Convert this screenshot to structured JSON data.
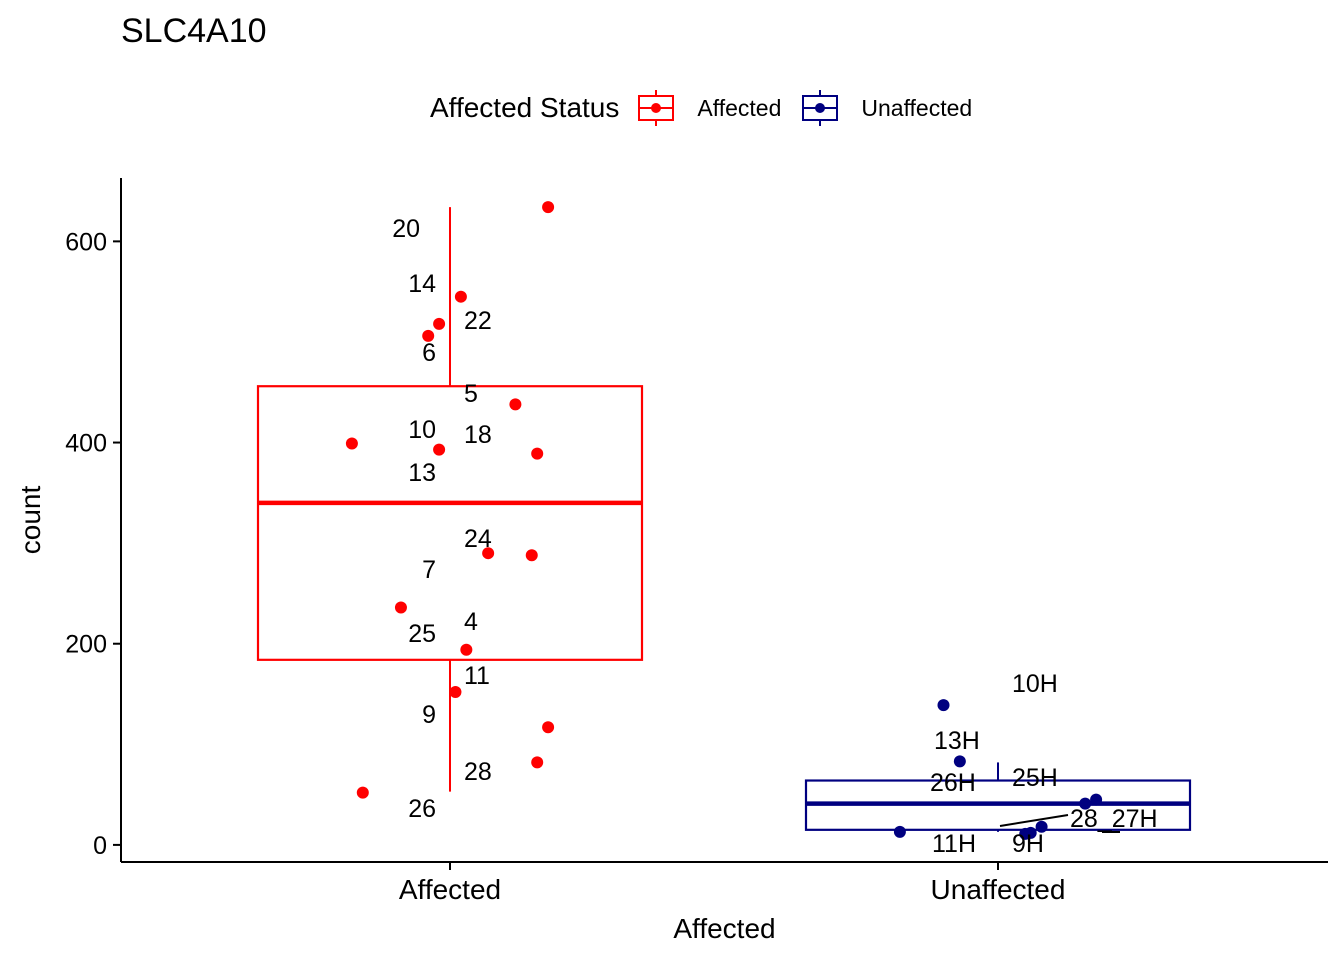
{
  "chart_data": {
    "type": "box",
    "title": "SLC4A10",
    "xlabel": "Affected",
    "ylabel": "count",
    "ylim": [
      -17,
      663
    ],
    "yticks": [
      0,
      200,
      400,
      600
    ],
    "categories": [
      "Affected",
      "Unaffected"
    ],
    "legend": {
      "title": "Affected Status",
      "position": "top",
      "entries": [
        "Affected",
        "Unaffected"
      ]
    },
    "grid": false,
    "series": [
      {
        "name": "Affected",
        "color": "#FF0000",
        "box": {
          "whisker_low": 53,
          "q1": 184,
          "median": 340,
          "q3": 456,
          "whisker_high": 634
        },
        "points": [
          {
            "label": "20",
            "value": 634,
            "jitter": 0.18
          },
          {
            "label": "14",
            "value": 545,
            "jitter": 0.02
          },
          {
            "label": "22",
            "value": 518,
            "jitter": -0.02
          },
          {
            "label": "6",
            "value": 506,
            "jitter": -0.04
          },
          {
            "label": "5",
            "value": 438,
            "jitter": 0.12
          },
          {
            "label": "10",
            "value": 399,
            "jitter": -0.18
          },
          {
            "label": "18",
            "value": 389,
            "jitter": 0.16
          },
          {
            "label": "13",
            "value": 393,
            "jitter": -0.02
          },
          {
            "label": "24",
            "value": 290,
            "jitter": 0.07
          },
          {
            "label": "7",
            "value": 288,
            "jitter": 0.15
          },
          {
            "label": "25",
            "value": 236,
            "jitter": -0.09
          },
          {
            "label": "4",
            "value": 194,
            "jitter": 0.03
          },
          {
            "label": "11",
            "value": 152,
            "jitter": 0.01
          },
          {
            "label": "9",
            "value": 117,
            "jitter": 0.18
          },
          {
            "label": "28",
            "value": 82,
            "jitter": 0.16
          },
          {
            "label": "26",
            "value": 52,
            "jitter": -0.16
          }
        ]
      },
      {
        "name": "Unaffected",
        "color": "#000080",
        "box": {
          "whisker_low": 13,
          "q1": 15,
          "median": 41,
          "q3": 64,
          "whisker_high": 82
        },
        "points": [
          {
            "label": "10H",
            "value": 139,
            "jitter": -0.1
          },
          {
            "label": "13H",
            "value": 83,
            "jitter": -0.07
          },
          {
            "label": "26H",
            "value": 45,
            "jitter": 0.18
          },
          {
            "label": "25H",
            "value": 41,
            "jitter": 0.16
          },
          {
            "label": "28",
            "value": 18,
            "jitter": 0.08
          },
          {
            "label": "27H",
            "value": 12,
            "jitter": 0.06
          },
          {
            "label": "11H",
            "value": 13,
            "jitter": -0.18
          },
          {
            "label": "9H",
            "value": 11,
            "jitter": 0.05
          }
        ]
      }
    ],
    "point_labels_rendered": [
      "20",
      "14",
      "22",
      "6",
      "5",
      "10",
      "18",
      "13",
      "24",
      "7",
      "25",
      "4",
      "11",
      "9",
      "28",
      "26",
      "10H",
      "13H",
      "26H",
      "25H",
      "28_27H",
      "11H",
      "9H"
    ]
  }
}
